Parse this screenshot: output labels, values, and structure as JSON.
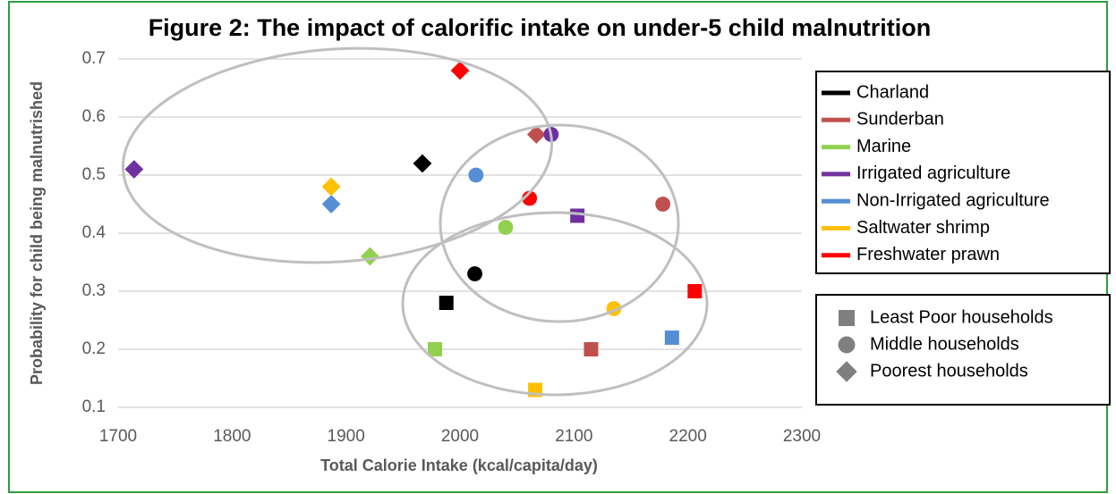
{
  "chart_data": {
    "type": "scatter",
    "title": "Figure 2: The impact of calorific intake on under-5 child malnutrition",
    "x_label": "Total Calorie Intake (kcal/capita/day)",
    "y_label": "Probability for child being malnutrished",
    "xlim": [
      1700,
      2300
    ],
    "xticks": [
      1700,
      1800,
      1900,
      2000,
      2100,
      2200,
      2300
    ],
    "ylim": [
      0.1,
      0.7
    ],
    "yticks": [
      0.1,
      0.2,
      0.3,
      0.4,
      0.5,
      0.6,
      0.7
    ],
    "grid": true,
    "groups": [
      "Least Poor households",
      "Middle households",
      "Poorest households"
    ],
    "markers": [
      "square",
      "circle",
      "diamond"
    ],
    "group_color": "#7f7f7f",
    "series": [
      {
        "name": "Charland",
        "color": "#000000",
        "x": [
          1988,
          2013,
          1967
        ],
        "y": [
          0.28,
          0.33,
          0.52
        ]
      },
      {
        "name": "Sunderban",
        "color": "#c0504d",
        "x": [
          2115,
          2178,
          2067
        ],
        "y": [
          0.2,
          0.45,
          0.57
        ]
      },
      {
        "name": "Marine",
        "color": "#92d050",
        "x": [
          1978,
          2040,
          1921
        ],
        "y": [
          0.2,
          0.41,
          0.36
        ]
      },
      {
        "name": "Irrigated agriculture",
        "color": "#7030a0",
        "x": [
          2103,
          2080,
          1714
        ],
        "y": [
          0.43,
          0.57,
          0.51
        ]
      },
      {
        "name": "Non-Irrigated agriculture",
        "color": "#558ed5",
        "x": [
          2186,
          2014,
          1887
        ],
        "y": [
          0.22,
          0.5,
          0.45
        ]
      },
      {
        "name": "Saltwater shrimp",
        "color": "#ffc000",
        "x": [
          2066,
          2135,
          1887
        ],
        "y": [
          0.13,
          0.27,
          0.48
        ]
      },
      {
        "name": "Freshwater prawn",
        "color": "#ff0000",
        "x": [
          2206,
          2061,
          2000
        ],
        "y": [
          0.3,
          0.46,
          0.68
        ]
      }
    ]
  }
}
